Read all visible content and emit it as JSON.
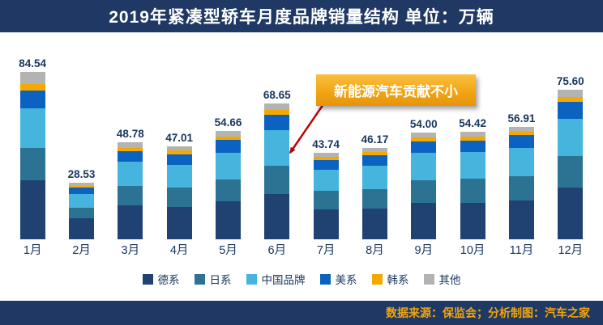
{
  "header": {
    "title": "2019年紧凑型轿车月度品牌销量结构  单位：万辆"
  },
  "annotation": {
    "text": "新能源汽车贡献不小",
    "arrow_color": "#c00000",
    "box_color": "#f0a312"
  },
  "footer": {
    "source": "数据来源：保监会；分析制图：汽车之家"
  },
  "chart_data": {
    "type": "bar",
    "stacked": true,
    "title": "2019年紧凑型轿车月度品牌销量结构",
    "unit": "万辆",
    "categories": [
      "1月",
      "2月",
      "3月",
      "4月",
      "5月",
      "6月",
      "7月",
      "8月",
      "9月",
      "10月",
      "11月",
      "12月"
    ],
    "totals": [
      84.54,
      28.53,
      48.78,
      47.01,
      54.66,
      68.65,
      43.74,
      46.17,
      54.0,
      54.42,
      56.91,
      75.6
    ],
    "ylim": [
      0,
      85
    ],
    "grid": false,
    "legend_position": "bottom",
    "series": [
      {
        "name": "德系",
        "color": "#1f4273",
        "values": [
          30.0,
          10.5,
          17.0,
          16.5,
          19.0,
          23.0,
          15.0,
          15.5,
          18.5,
          18.5,
          19.5,
          26.0
        ]
      },
      {
        "name": "日系",
        "color": "#2c7293",
        "values": [
          16.0,
          5.5,
          10.0,
          9.5,
          11.0,
          14.0,
          9.5,
          10.0,
          11.5,
          12.0,
          12.5,
          16.0
        ]
      },
      {
        "name": "中国品牌",
        "color": "#45b5dd",
        "values": [
          20.0,
          7.0,
          12.0,
          11.5,
          13.5,
          18.0,
          10.5,
          11.5,
          13.5,
          13.5,
          14.0,
          19.0
        ]
      },
      {
        "name": "美系",
        "color": "#0b62c1",
        "values": [
          9.0,
          3.0,
          5.5,
          5.5,
          6.5,
          8.0,
          5.0,
          5.5,
          6.0,
          6.0,
          6.5,
          8.5
        ]
      },
      {
        "name": "韩系",
        "color": "#f5a800",
        "values": [
          3.5,
          1.0,
          1.8,
          1.8,
          2.0,
          2.5,
          1.6,
          1.7,
          2.0,
          2.0,
          2.0,
          2.5
        ]
      },
      {
        "name": "其他",
        "color": "#b3b3b3",
        "values": [
          6.04,
          1.53,
          2.48,
          2.21,
          2.66,
          3.15,
          2.14,
          1.97,
          2.5,
          2.42,
          2.41,
          3.6
        ]
      }
    ]
  }
}
